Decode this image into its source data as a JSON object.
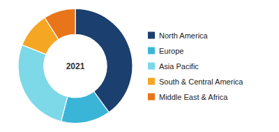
{
  "chart_data": {
    "type": "donut",
    "categories": [
      "North America",
      "Europe",
      "Asia Pacific",
      "South & Central America",
      "Middle East & Africa"
    ],
    "values": [
      40,
      14,
      27,
      10,
      9
    ],
    "colors": [
      "#1b3f6e",
      "#3ab5d8",
      "#7dd8e8",
      "#f5a623",
      "#e8751a"
    ],
    "annotations": [
      "2021"
    ],
    "legend": "right"
  }
}
